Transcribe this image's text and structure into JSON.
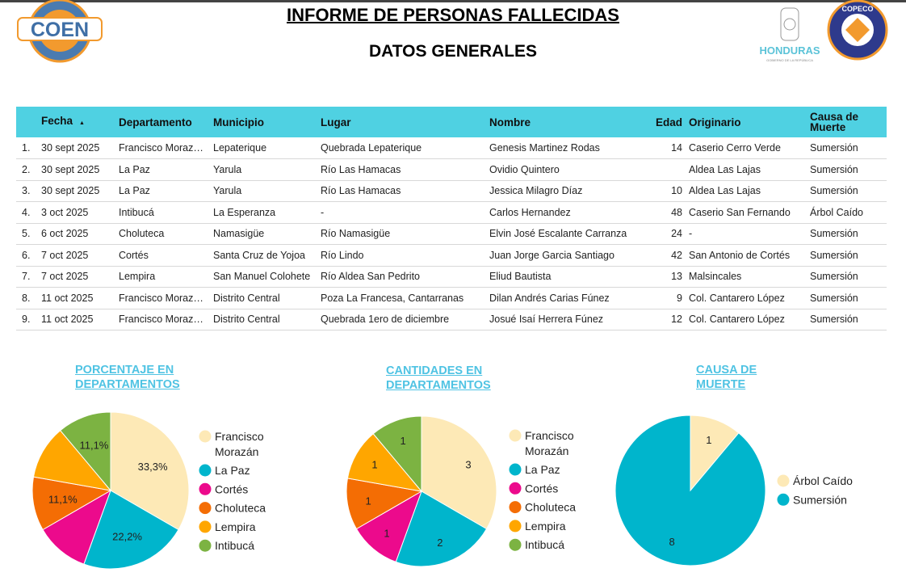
{
  "header": {
    "title": "INFORME DE PERSONAS FALLECIDAS",
    "subtitle": "DATOS GENERALES",
    "logo_left": "COEN",
    "logo_mid": "HONDURAS",
    "logo_mid_sub": "GOBIERNO DE LA REPÚBLICA",
    "logo_right": "COPECO HONDURAS"
  },
  "table": {
    "columns": [
      "",
      "Fecha",
      "Departamento",
      "Municipio",
      "Lugar",
      "Nombre",
      "Edad",
      "Originario",
      "Causa de Muerte"
    ],
    "sort_icon": "sort-ascending-icon",
    "rows": [
      [
        "1.",
        "30 sept 2025",
        "Francisco Moraz…",
        "Lepaterique",
        "Quebrada Lepaterique",
        "Genesis Martinez Rodas",
        "14",
        "Caserio Cerro Verde",
        "Sumersión"
      ],
      [
        "2.",
        "30 sept 2025",
        "La Paz",
        "Yarula",
        "Río Las Hamacas",
        "Ovidio Quintero",
        "",
        "Aldea Las Lajas",
        "Sumersión"
      ],
      [
        "3.",
        "30 sept 2025",
        "La Paz",
        "Yarula",
        "Río Las Hamacas",
        "Jessica Milagro Díaz",
        "10",
        "Aldea Las Lajas",
        "Sumersión"
      ],
      [
        "4.",
        "3 oct 2025",
        "Intibucá",
        "La Esperanza",
        "-",
        "Carlos Hernandez",
        "48",
        "Caserio San Fernando",
        "Árbol Caído"
      ],
      [
        "5.",
        "6 oct 2025",
        "Choluteca",
        "Namasigüe",
        "Río Namasigüe",
        "Elvin José Escalante Carranza",
        "24",
        "-",
        "Sumersión"
      ],
      [
        "6.",
        "7 oct 2025",
        "Cortés",
        "Santa Cruz de Yojoa",
        "Río Lindo",
        "Juan Jorge Garcia Santiago",
        "42",
        "San Antonio de Cortés",
        "Sumersión"
      ],
      [
        "7.",
        "7 oct 2025",
        "Lempira",
        "San Manuel Colohete",
        "Río Aldea San Pedrito",
        "Eliud Bautista",
        "13",
        "Malsincales",
        "Sumersión"
      ],
      [
        "8.",
        "11 oct 2025",
        "Francisco Moraz…",
        "Distrito Central",
        "Poza La Francesa, Cantarranas",
        "Dilan Andrés Carias Fúnez",
        "9",
        "Col. Cantarero López",
        "Sumersión"
      ],
      [
        "9.",
        "11 oct 2025",
        "Francisco Moraz…",
        "Distrito Central",
        "Quebrada 1ero de diciembre",
        "Josué Isaí Herrera Fúnez",
        "12",
        "Col. Cantarero López",
        "Sumersión"
      ]
    ]
  },
  "chart_data": [
    {
      "type": "pie",
      "title": "PORCENTAJE EN DEPARTAMENTOS",
      "categories": [
        "Francisco Morazán",
        "La Paz",
        "Cortés",
        "Choluteca",
        "Lempira",
        "Intibucá"
      ],
      "values": [
        3,
        2,
        1,
        1,
        1,
        1
      ],
      "data_labels": [
        "33,3%",
        "22,2%",
        "",
        "11,1%",
        "",
        "11,1%"
      ],
      "colors": [
        "#fde9b6",
        "#00b5cc",
        "#ec0a8c",
        "#f46d04",
        "#ffa600",
        "#7cb342"
      ],
      "legend": "right"
    },
    {
      "type": "pie",
      "title": "CANTIDADES EN DEPARTAMENTOS",
      "categories": [
        "Francisco Morazán",
        "La Paz",
        "Cortés",
        "Choluteca",
        "Lempira",
        "Intibucá"
      ],
      "values": [
        3,
        2,
        1,
        1,
        1,
        1
      ],
      "data_labels": [
        "3",
        "2",
        "1",
        "1",
        "1",
        "1"
      ],
      "colors": [
        "#fde9b6",
        "#00b5cc",
        "#ec0a8c",
        "#f46d04",
        "#ffa600",
        "#7cb342"
      ],
      "legend": "right"
    },
    {
      "type": "pie",
      "title": "CAUSA DE MUERTE",
      "categories": [
        "Árbol Caído",
        "Sumersión"
      ],
      "values": [
        1,
        8
      ],
      "data_labels": [
        "1",
        "8"
      ],
      "colors": [
        "#fde9b6",
        "#00b5cc"
      ],
      "legend": "right"
    }
  ]
}
